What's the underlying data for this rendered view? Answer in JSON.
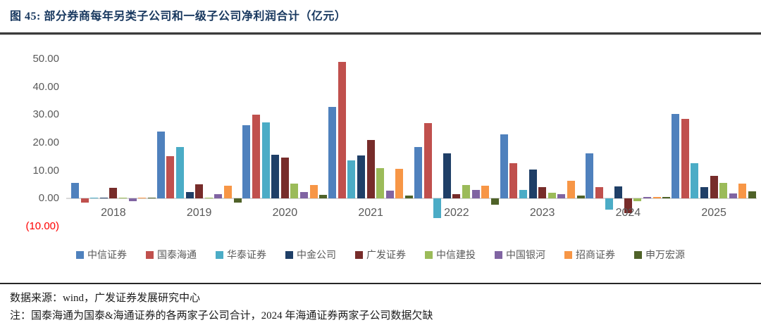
{
  "header": {
    "title": "图 45:  部分券商每年另类子公司和一级子公司净利润合计（亿元）"
  },
  "chart_data": {
    "type": "bar",
    "title": "部分券商每年另类子公司和一级子公司净利润合计（亿元）",
    "unit": "亿元",
    "categories": [
      "2018",
      "2019",
      "2020",
      "2021",
      "2022",
      "2023",
      "2024",
      "2025"
    ],
    "series": [
      {
        "name": "中信证券",
        "color": "#4f81bd",
        "values": [
          5.6,
          24.0,
          26.2,
          32.8,
          18.4,
          23.1,
          16.3,
          30.3
        ]
      },
      {
        "name": "国泰海通",
        "color": "#c0504d",
        "values": [
          -1.5,
          15.2,
          30.1,
          48.9,
          27.1,
          12.6,
          4.2,
          28.6
        ]
      },
      {
        "name": "华泰证券",
        "color": "#4bacc6",
        "values": [
          0.1,
          18.5,
          27.2,
          13.7,
          -7.0,
          3.1,
          -4.0,
          12.6
        ]
      },
      {
        "name": "中金公司",
        "color": "#1f3f67",
        "values": [
          0.1,
          2.4,
          15.7,
          15.4,
          16.2,
          10.5,
          4.4,
          4.0
        ]
      },
      {
        "name": "广发证券",
        "color": "#772c2a",
        "values": [
          3.8,
          5.1,
          14.8,
          21.0,
          1.7,
          4.0,
          -5.1,
          8.1
        ]
      },
      {
        "name": "中信建投",
        "color": "#9bbb59",
        "values": [
          0.3,
          0.4,
          5.4,
          10.8,
          4.9,
          2.1,
          -0.8,
          5.7
        ]
      },
      {
        "name": "中国银河",
        "color": "#8064a2",
        "values": [
          -0.8,
          1.5,
          2.3,
          2.8,
          3.2,
          1.7,
          0.5,
          1.9
        ]
      },
      {
        "name": "招商证券",
        "color": "#f79646",
        "values": [
          0.1,
          4.6,
          5.0,
          10.7,
          4.6,
          6.5,
          0.5,
          5.5
        ]
      },
      {
        "name": "申万宏源",
        "color": "#4f6228",
        "values": [
          0.3,
          -1.4,
          1.3,
          1.2,
          -2.1,
          1.0,
          0.5,
          2.5
        ]
      }
    ],
    "ylim": [
      -10,
      50
    ],
    "yticks": [
      {
        "label": "50.00",
        "value": 50,
        "color": "#595959"
      },
      {
        "label": "40.00",
        "value": 40,
        "color": "#595959"
      },
      {
        "label": "30.00",
        "value": 30,
        "color": "#595959"
      },
      {
        "label": "20.00",
        "value": 20,
        "color": "#595959"
      },
      {
        "label": "10.00",
        "value": 10,
        "color": "#595959"
      },
      {
        "label": "0.00",
        "value": 0,
        "color": "#595959"
      },
      {
        "label": "(10.00)",
        "value": -10,
        "color": "#ff0000"
      }
    ],
    "grid": false,
    "legend_position": "bottom"
  },
  "footer": {
    "source": "数据来源：wind，广发证券发展研究中心",
    "note": "注：国泰海通为国泰&海通证券的各两家子公司合计，2024 年海通证券两家子公司数据欠缺"
  }
}
